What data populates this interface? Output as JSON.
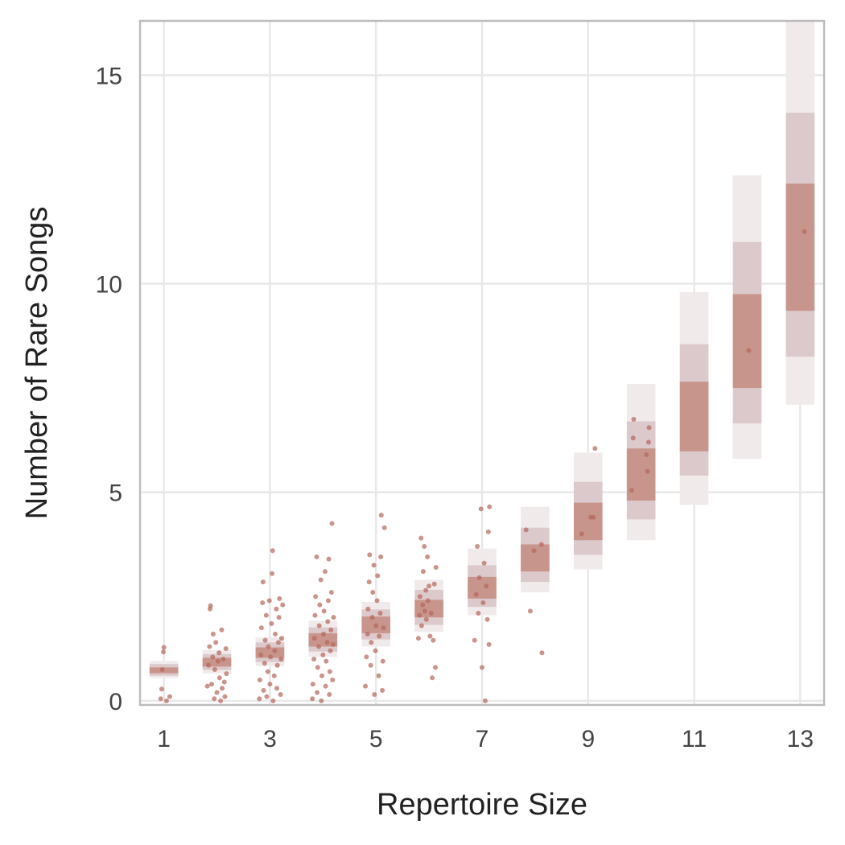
{
  "chart_data": {
    "type": "scatter",
    "xlabel": "Repertoire Size",
    "ylabel": "Number of Rare Songs",
    "xlim": [
      0.55,
      13.45
    ],
    "ylim": [
      -0.1,
      16.3
    ],
    "x_ticks": [
      1,
      3,
      5,
      7,
      9,
      11,
      13
    ],
    "y_ticks": [
      0,
      5,
      10,
      15
    ],
    "grid": true,
    "legend": "none",
    "colors": {
      "points": "#b5675a",
      "interval_inner": "#c8958c",
      "interval_middle": "#dcc9cb",
      "interval_outer": "#f1eaea",
      "grid": "#e8e8e8",
      "frame": "#bdbdbd"
    },
    "intervals": [
      {
        "x": 1,
        "median": 0.73,
        "inner": [
          0.66,
          0.8
        ],
        "middle": [
          0.6,
          0.88
        ],
        "outer": [
          0.55,
          0.95
        ]
      },
      {
        "x": 2,
        "median": 0.92,
        "inner": [
          0.82,
          1.03
        ],
        "middle": [
          0.74,
          1.12
        ],
        "outer": [
          0.66,
          1.22
        ]
      },
      {
        "x": 3,
        "median": 1.15,
        "inner": [
          1.03,
          1.28
        ],
        "middle": [
          0.93,
          1.4
        ],
        "outer": [
          0.83,
          1.52
        ]
      },
      {
        "x": 4,
        "median": 1.45,
        "inner": [
          1.3,
          1.62
        ],
        "middle": [
          1.18,
          1.76
        ],
        "outer": [
          1.05,
          1.92
        ]
      },
      {
        "x": 5,
        "median": 1.8,
        "inner": [
          1.62,
          2.02
        ],
        "middle": [
          1.47,
          2.19
        ],
        "outer": [
          1.3,
          2.37
        ]
      },
      {
        "x": 6,
        "median": 2.2,
        "inner": [
          2.0,
          2.42
        ],
        "middle": [
          1.82,
          2.66
        ],
        "outer": [
          1.65,
          2.9
        ]
      },
      {
        "x": 7,
        "median": 2.7,
        "inner": [
          2.45,
          2.97
        ],
        "middle": [
          2.25,
          3.25
        ],
        "outer": [
          2.05,
          3.65
        ]
      },
      {
        "x": 8,
        "median": 3.5,
        "inner": [
          3.1,
          3.75
        ],
        "middle": [
          2.85,
          4.15
        ],
        "outer": [
          2.6,
          4.65
        ]
      },
      {
        "x": 9,
        "median": 4.35,
        "inner": [
          3.85,
          4.75
        ],
        "middle": [
          3.5,
          5.25
        ],
        "outer": [
          3.15,
          5.95
        ]
      },
      {
        "x": 10,
        "median": 5.4,
        "inner": [
          4.8,
          6.05
        ],
        "middle": [
          4.35,
          6.7
        ],
        "outer": [
          3.85,
          7.6
        ]
      },
      {
        "x": 11,
        "median": 6.8,
        "inner": [
          5.98,
          7.65
        ],
        "middle": [
          5.4,
          8.55
        ],
        "outer": [
          4.7,
          9.8
        ]
      },
      {
        "x": 12,
        "median": 8.6,
        "inner": [
          7.5,
          9.75
        ],
        "middle": [
          6.65,
          11.0
        ],
        "outer": [
          5.8,
          12.6
        ]
      },
      {
        "x": 13,
        "median": 10.9,
        "inner": [
          9.35,
          12.4
        ],
        "middle": [
          8.25,
          14.1
        ],
        "outer": [
          7.1,
          16.3
        ]
      }
    ],
    "points": [
      {
        "x": 0.94,
        "y": 0.05
      },
      {
        "x": 0.96,
        "y": 0.28
      },
      {
        "x": 0.97,
        "y": 0.75
      },
      {
        "x": 0.99,
        "y": 1.17
      },
      {
        "x": 1.0,
        "y": 1.28
      },
      {
        "x": 1.05,
        "y": 0.0
      },
      {
        "x": 1.11,
        "y": 0.1
      },
      {
        "x": 1.82,
        "y": 0.35
      },
      {
        "x": 1.84,
        "y": 0.85
      },
      {
        "x": 1.86,
        "y": 1.3
      },
      {
        "x": 1.87,
        "y": 2.2
      },
      {
        "x": 1.88,
        "y": 2.28
      },
      {
        "x": 1.9,
        "y": 0.4
      },
      {
        "x": 1.92,
        "y": 1.05
      },
      {
        "x": 1.93,
        "y": 1.6
      },
      {
        "x": 1.95,
        "y": 0.05
      },
      {
        "x": 1.96,
        "y": 0.75
      },
      {
        "x": 1.98,
        "y": 1.4
      },
      {
        "x": 2.0,
        "y": 0.2
      },
      {
        "x": 2.02,
        "y": 0.95
      },
      {
        "x": 2.04,
        "y": 1.15
      },
      {
        "x": 2.05,
        "y": 0.55
      },
      {
        "x": 2.07,
        "y": 0.0
      },
      {
        "x": 2.09,
        "y": 1.7
      },
      {
        "x": 2.1,
        "y": 0.3
      },
      {
        "x": 2.12,
        "y": 1.0
      },
      {
        "x": 2.14,
        "y": 0.45
      },
      {
        "x": 2.15,
        "y": 0.1
      },
      {
        "x": 2.17,
        "y": 1.25
      },
      {
        "x": 2.18,
        "y": 0.65
      },
      {
        "x": 2.8,
        "y": 0.05
      },
      {
        "x": 2.81,
        "y": 0.5
      },
      {
        "x": 2.83,
        "y": 1.1
      },
      {
        "x": 2.84,
        "y": 1.75
      },
      {
        "x": 2.86,
        "y": 2.35
      },
      {
        "x": 2.87,
        "y": 2.85
      },
      {
        "x": 2.88,
        "y": 0.25
      },
      {
        "x": 2.9,
        "y": 0.9
      },
      {
        "x": 2.91,
        "y": 1.45
      },
      {
        "x": 2.93,
        "y": 2.05
      },
      {
        "x": 2.94,
        "y": 0.1
      },
      {
        "x": 2.96,
        "y": 0.7
      },
      {
        "x": 2.97,
        "y": 1.3
      },
      {
        "x": 2.99,
        "y": 2.4
      },
      {
        "x": 3.0,
        "y": 0.4
      },
      {
        "x": 3.01,
        "y": 1.05
      },
      {
        "x": 3.03,
        "y": 1.85
      },
      {
        "x": 3.04,
        "y": 3.05
      },
      {
        "x": 3.05,
        "y": 3.6
      },
      {
        "x": 3.06,
        "y": 0.0
      },
      {
        "x": 3.08,
        "y": 0.6
      },
      {
        "x": 3.09,
        "y": 1.2
      },
      {
        "x": 3.1,
        "y": 1.6
      },
      {
        "x": 3.12,
        "y": 2.2
      },
      {
        "x": 3.13,
        "y": 0.3
      },
      {
        "x": 3.14,
        "y": 0.85
      },
      {
        "x": 3.16,
        "y": 1.4
      },
      {
        "x": 3.17,
        "y": 2.0
      },
      {
        "x": 3.18,
        "y": 2.45
      },
      {
        "x": 3.2,
        "y": 0.15
      },
      {
        "x": 3.21,
        "y": 1.0
      },
      {
        "x": 3.22,
        "y": 1.5
      },
      {
        "x": 3.24,
        "y": 2.3
      },
      {
        "x": 3.8,
        "y": 0.05
      },
      {
        "x": 3.81,
        "y": 0.4
      },
      {
        "x": 3.83,
        "y": 1.0
      },
      {
        "x": 3.84,
        "y": 1.5
      },
      {
        "x": 3.85,
        "y": 2.05
      },
      {
        "x": 3.86,
        "y": 2.5
      },
      {
        "x": 3.88,
        "y": 3.45
      },
      {
        "x": 3.89,
        "y": 0.2
      },
      {
        "x": 3.9,
        "y": 0.8
      },
      {
        "x": 3.92,
        "y": 1.3
      },
      {
        "x": 3.93,
        "y": 1.8
      },
      {
        "x": 3.94,
        "y": 2.3
      },
      {
        "x": 3.96,
        "y": 2.9
      },
      {
        "x": 3.97,
        "y": 0.0
      },
      {
        "x": 3.98,
        "y": 0.6
      },
      {
        "x": 4.0,
        "y": 1.1
      },
      {
        "x": 4.01,
        "y": 1.6
      },
      {
        "x": 4.02,
        "y": 2.15
      },
      {
        "x": 4.04,
        "y": 3.1
      },
      {
        "x": 4.05,
        "y": 0.35
      },
      {
        "x": 4.06,
        "y": 0.95
      },
      {
        "x": 4.08,
        "y": 1.4
      },
      {
        "x": 4.09,
        "y": 1.9
      },
      {
        "x": 4.1,
        "y": 2.4
      },
      {
        "x": 4.11,
        "y": 3.4
      },
      {
        "x": 4.12,
        "y": 0.15
      },
      {
        "x": 4.13,
        "y": 0.7
      },
      {
        "x": 4.14,
        "y": 1.2
      },
      {
        "x": 4.15,
        "y": 1.7
      },
      {
        "x": 4.16,
        "y": 2.6
      },
      {
        "x": 4.17,
        "y": 4.25
      },
      {
        "x": 4.18,
        "y": 0.5
      },
      {
        "x": 4.19,
        "y": 1.35
      },
      {
        "x": 4.2,
        "y": 2.0
      },
      {
        "x": 4.8,
        "y": 0.35
      },
      {
        "x": 4.82,
        "y": 1.05
      },
      {
        "x": 4.84,
        "y": 1.6
      },
      {
        "x": 4.85,
        "y": 2.2
      },
      {
        "x": 4.87,
        "y": 2.85
      },
      {
        "x": 4.88,
        "y": 3.5
      },
      {
        "x": 4.9,
        "y": 0.85
      },
      {
        "x": 4.91,
        "y": 1.4
      },
      {
        "x": 4.93,
        "y": 2.0
      },
      {
        "x": 4.94,
        "y": 2.6
      },
      {
        "x": 4.96,
        "y": 3.25
      },
      {
        "x": 4.97,
        "y": 0.15
      },
      {
        "x": 4.99,
        "y": 1.2
      },
      {
        "x": 5.0,
        "y": 1.8
      },
      {
        "x": 5.02,
        "y": 2.4
      },
      {
        "x": 5.03,
        "y": 3.0
      },
      {
        "x": 5.05,
        "y": 0.6
      },
      {
        "x": 5.06,
        "y": 1.55
      },
      {
        "x": 5.08,
        "y": 2.1
      },
      {
        "x": 5.09,
        "y": 3.45
      },
      {
        "x": 5.1,
        "y": 4.45
      },
      {
        "x": 5.12,
        "y": 0.25
      },
      {
        "x": 5.13,
        "y": 0.95
      },
      {
        "x": 5.14,
        "y": 1.75
      },
      {
        "x": 5.16,
        "y": 4.15
      },
      {
        "x": 5.8,
        "y": 1.5
      },
      {
        "x": 5.82,
        "y": 2.05
      },
      {
        "x": 5.83,
        "y": 2.5
      },
      {
        "x": 5.85,
        "y": 3.9
      },
      {
        "x": 5.86,
        "y": 1.8
      },
      {
        "x": 5.88,
        "y": 2.3
      },
      {
        "x": 5.89,
        "y": 3.1
      },
      {
        "x": 5.91,
        "y": 3.7
      },
      {
        "x": 5.92,
        "y": 2.15
      },
      {
        "x": 5.94,
        "y": 2.65
      },
      {
        "x": 5.95,
        "y": 1.95
      },
      {
        "x": 5.97,
        "y": 3.45
      },
      {
        "x": 5.98,
        "y": 2.4
      },
      {
        "x": 6.0,
        "y": 2.75
      },
      {
        "x": 6.02,
        "y": 1.55
      },
      {
        "x": 6.04,
        "y": 2.1
      },
      {
        "x": 6.06,
        "y": 0.55
      },
      {
        "x": 6.08,
        "y": 1.45
      },
      {
        "x": 6.1,
        "y": 2.8
      },
      {
        "x": 6.12,
        "y": 0.8
      },
      {
        "x": 6.13,
        "y": 3.2
      },
      {
        "x": 6.86,
        "y": 1.45
      },
      {
        "x": 6.89,
        "y": 2.55
      },
      {
        "x": 6.91,
        "y": 3.7
      },
      {
        "x": 6.93,
        "y": 2.1
      },
      {
        "x": 6.95,
        "y": 2.95
      },
      {
        "x": 6.98,
        "y": 4.6
      },
      {
        "x": 7.0,
        "y": 0.8
      },
      {
        "x": 7.02,
        "y": 2.35
      },
      {
        "x": 7.04,
        "y": 3.3
      },
      {
        "x": 7.06,
        "y": 0.0
      },
      {
        "x": 7.08,
        "y": 2.75
      },
      {
        "x": 7.1,
        "y": 1.95
      },
      {
        "x": 7.12,
        "y": 4.05
      },
      {
        "x": 7.13,
        "y": 1.35
      },
      {
        "x": 7.14,
        "y": 4.65
      },
      {
        "x": 7.83,
        "y": 4.1
      },
      {
        "x": 7.91,
        "y": 2.15
      },
      {
        "x": 7.98,
        "y": 3.6
      },
      {
        "x": 8.12,
        "y": 3.75
      },
      {
        "x": 8.13,
        "y": 1.15
      },
      {
        "x": 8.88,
        "y": 4.0
      },
      {
        "x": 9.05,
        "y": 4.4
      },
      {
        "x": 9.1,
        "y": 4.4
      },
      {
        "x": 9.13,
        "y": 6.05
      },
      {
        "x": 9.82,
        "y": 5.05
      },
      {
        "x": 9.85,
        "y": 6.3
      },
      {
        "x": 9.86,
        "y": 6.75
      },
      {
        "x": 10.1,
        "y": 5.9
      },
      {
        "x": 10.12,
        "y": 5.5
      },
      {
        "x": 10.14,
        "y": 6.2
      },
      {
        "x": 10.15,
        "y": 6.55
      },
      {
        "x": 12.03,
        "y": 8.4
      },
      {
        "x": 13.08,
        "y": 11.25
      }
    ]
  }
}
